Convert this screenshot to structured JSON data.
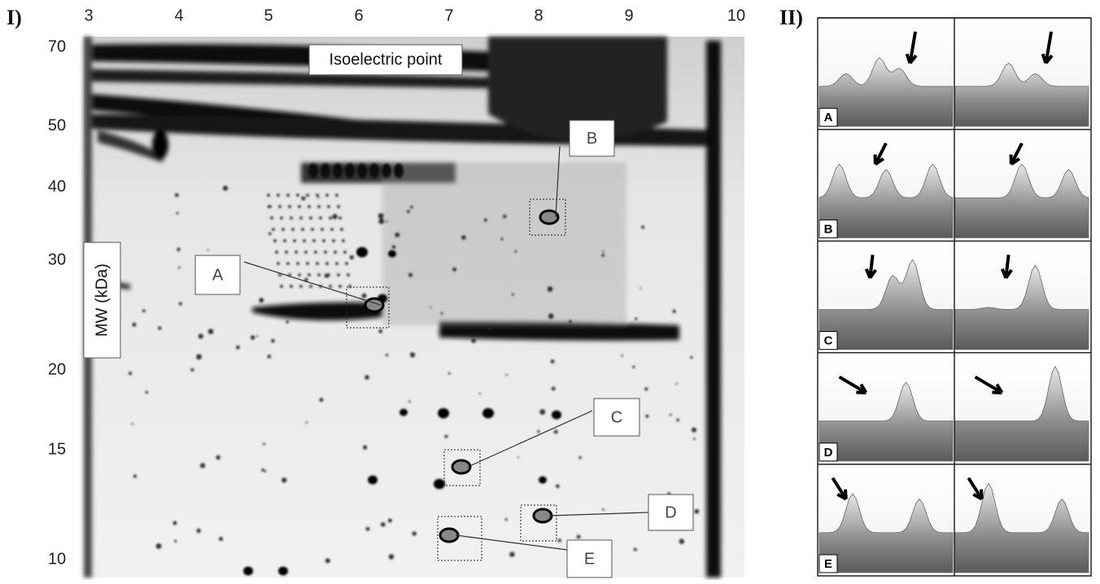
{
  "panel_i": {
    "label": "I)",
    "x_axis_title": "Isoelectric point",
    "y_axis_title": "MW (kDa)",
    "x_ticks": [
      "3",
      "4",
      "5",
      "6",
      "7",
      "8",
      "9",
      "10"
    ],
    "y_ticks": [
      "70",
      "50",
      "40",
      "30",
      "20",
      "15",
      "10"
    ],
    "spot_labels": [
      "A",
      "B",
      "C",
      "D",
      "E"
    ]
  },
  "panel_ii": {
    "label": "II)",
    "row_labels": [
      "A",
      "B",
      "C",
      "D",
      "E"
    ]
  }
}
